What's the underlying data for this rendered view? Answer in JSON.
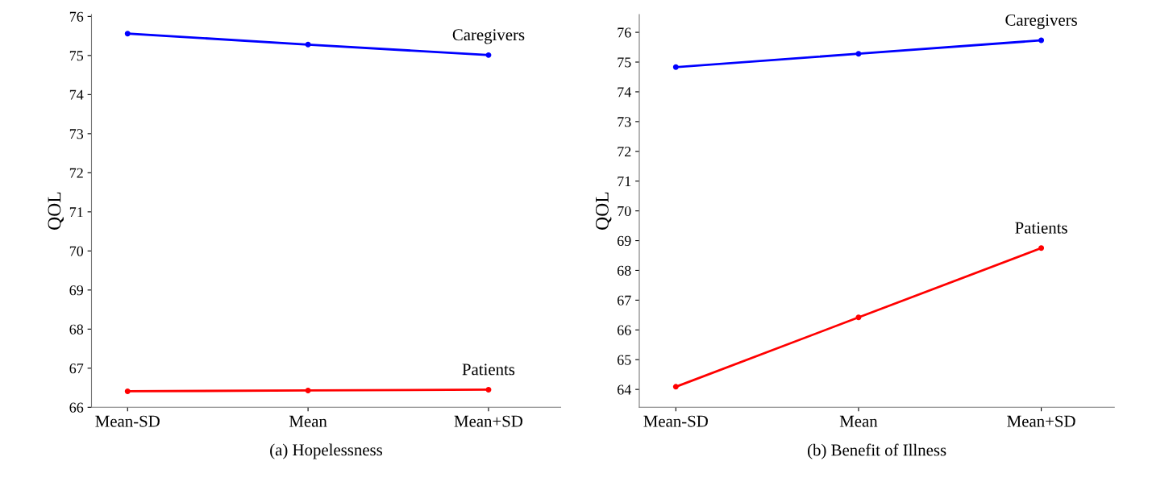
{
  "chart_data": [
    {
      "type": "line",
      "title": "(a) Hopelessness",
      "ylabel": "QOL",
      "categories": [
        "Mean-SD",
        "Mean",
        "Mean+SD"
      ],
      "series": [
        {
          "name": "Caregivers",
          "color": "#0000ff",
          "values": [
            75.56,
            75.28,
            75.01
          ]
        },
        {
          "name": "Patients",
          "color": "#ff0000",
          "values": [
            66.41,
            66.43,
            66.45
          ]
        }
      ],
      "ylim": [
        66,
        76.05
      ],
      "yticks": [
        66,
        67,
        68,
        69,
        70,
        71,
        72,
        73,
        74,
        75,
        76
      ],
      "grid": false,
      "legend": false,
      "marker": "circle",
      "line_style": "solid"
    },
    {
      "type": "line",
      "title": "(b) Benefit of Illness",
      "ylabel": "QOL",
      "categories": [
        "Mean-SD",
        "Mean",
        "Mean+SD"
      ],
      "series": [
        {
          "name": "Caregivers",
          "color": "#0000ff",
          "values": [
            74.83,
            75.28,
            75.73
          ]
        },
        {
          "name": "Patients",
          "color": "#ff0000",
          "values": [
            64.09,
            66.42,
            68.75
          ]
        }
      ],
      "ylim": [
        63.4,
        76.6
      ],
      "yticks": [
        64,
        65,
        66,
        67,
        68,
        69,
        70,
        71,
        72,
        73,
        74,
        75,
        76
      ],
      "grid": false,
      "legend": false,
      "marker": "circle",
      "line_style": "solid"
    }
  ]
}
